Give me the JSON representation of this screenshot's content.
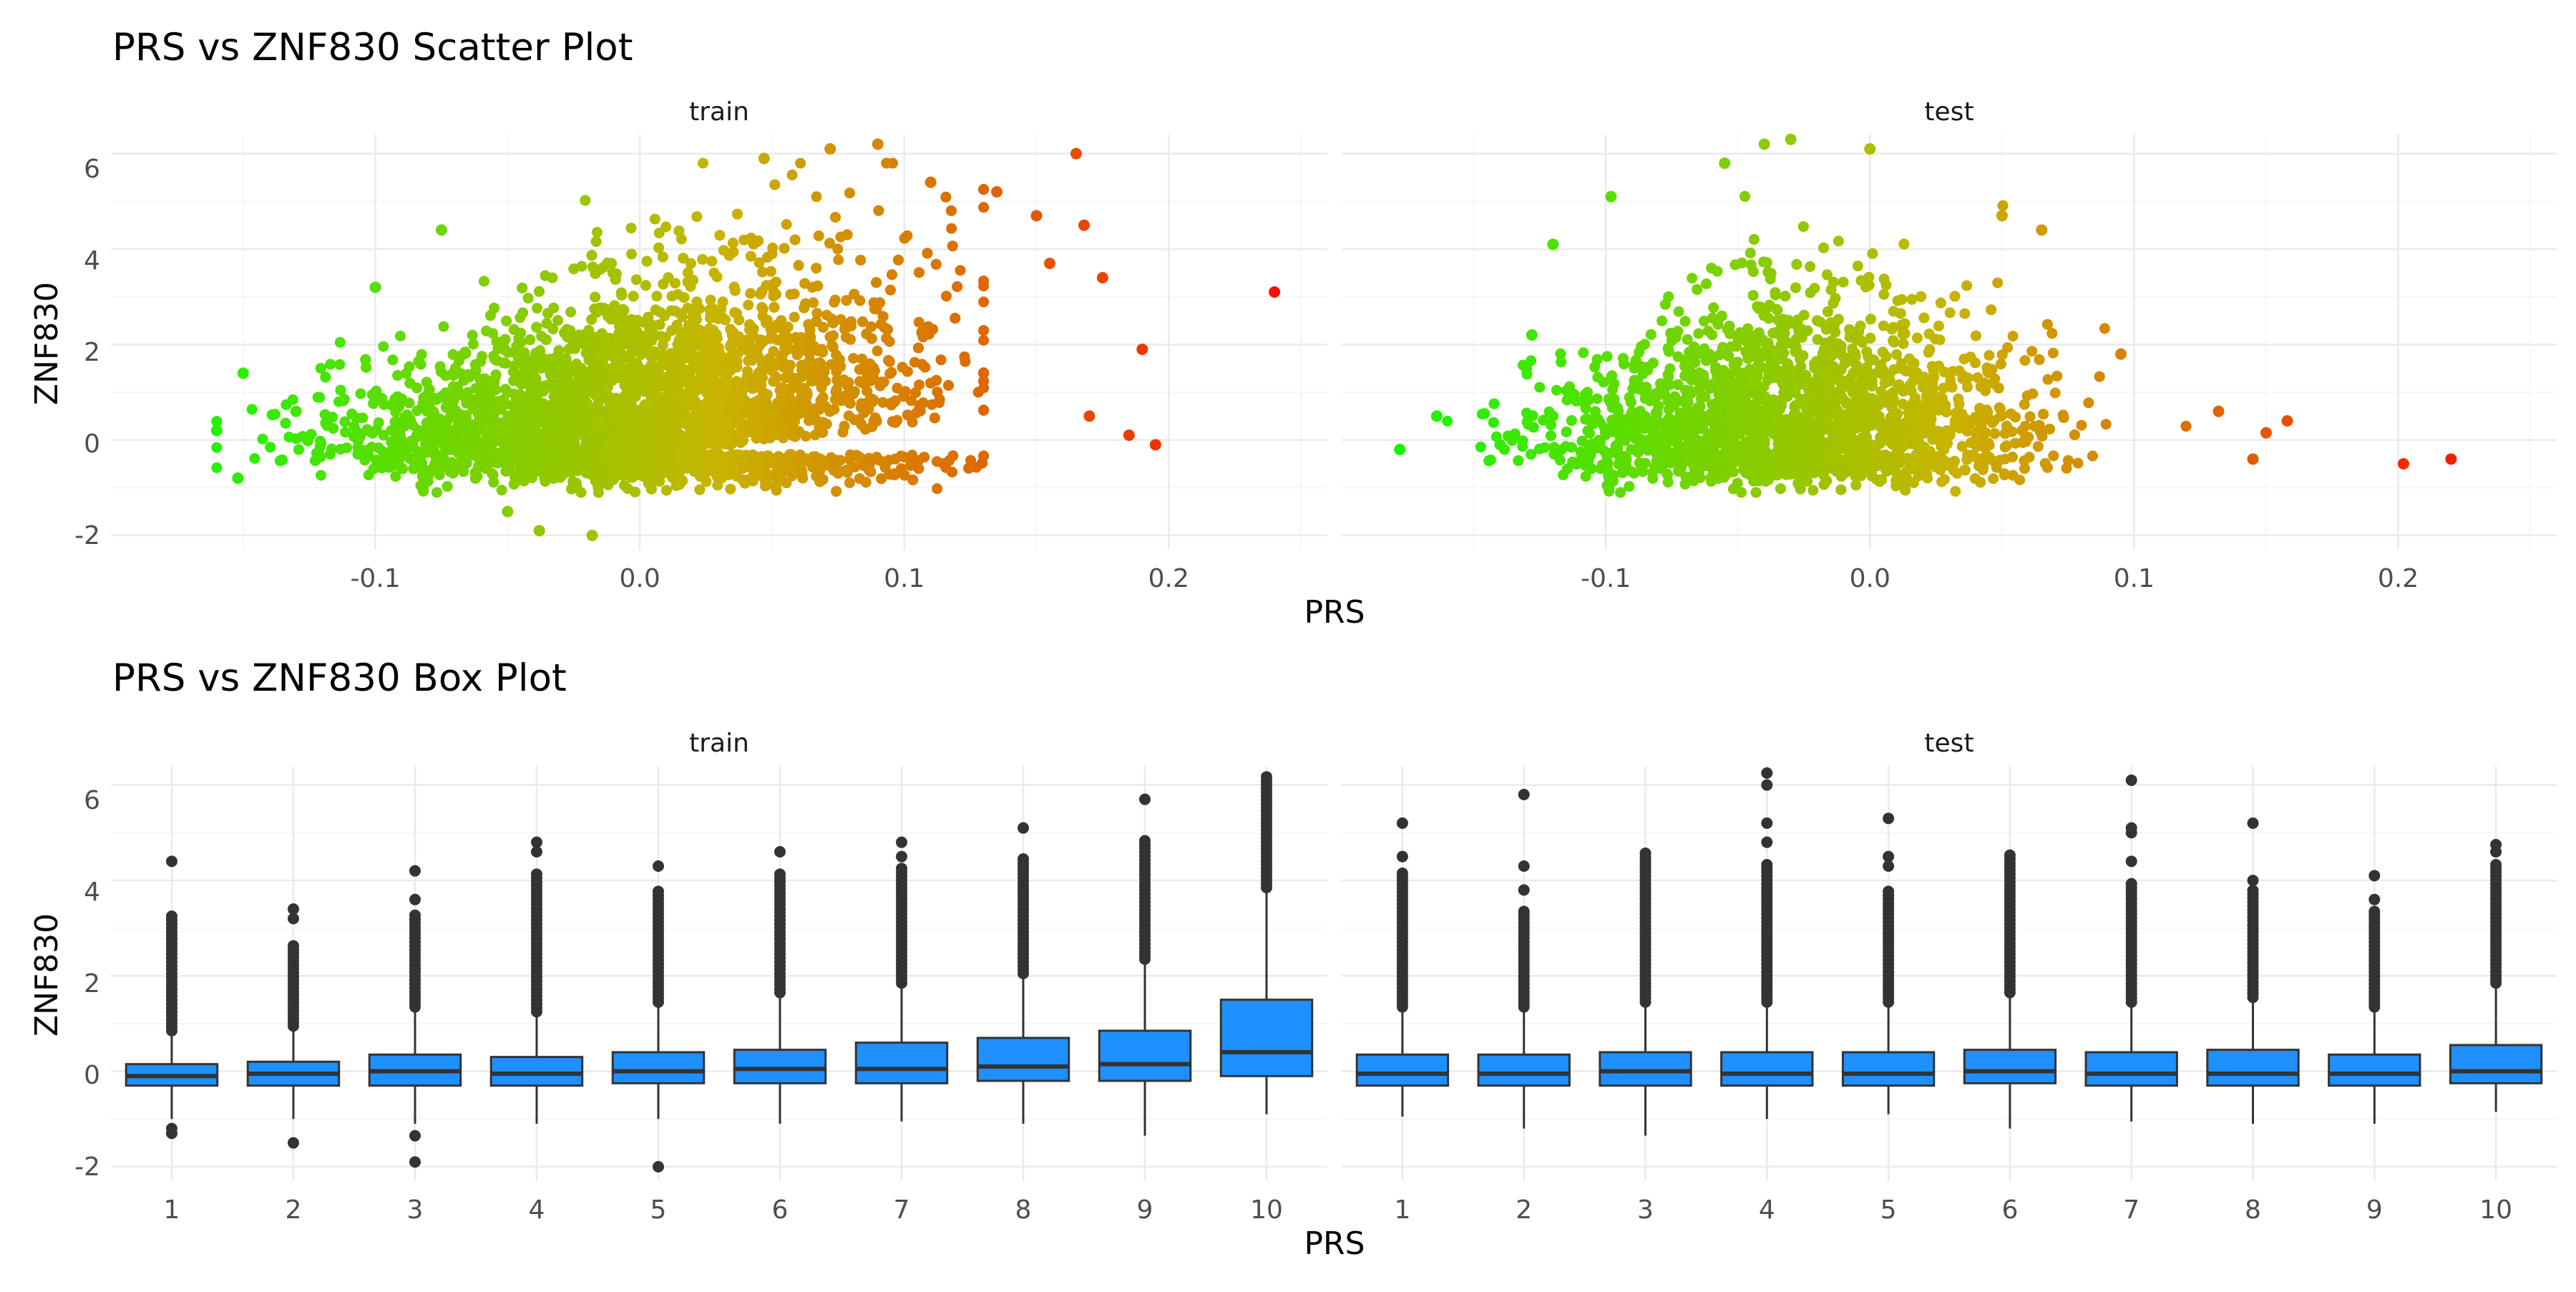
{
  "scatter": {
    "title": "PRS vs ZNF830 Scatter Plot",
    "xlabel": "PRS",
    "ylabel": "ZNF830"
  },
  "box": {
    "title": "PRS vs ZNF830 Box Plot",
    "xlabel": "PRS",
    "ylabel": "ZNF830"
  },
  "colors": {
    "box_fill": "#1e90ff",
    "box_line": "#333333",
    "outlier": "#333333",
    "gradient_low": "#00ff00",
    "gradient_mid": "#c8b400",
    "gradient_high": "#ff0000"
  },
  "chart_data": [
    {
      "type": "scatter",
      "title": "PRS vs ZNF830 Scatter Plot",
      "xlabel": "PRS",
      "ylabel": "ZNF830",
      "facets": [
        "train",
        "test"
      ],
      "color_by": "PRS",
      "grid": true,
      "xlim": [
        -0.2,
        0.26
      ],
      "ylim": [
        -2.3,
        6.4
      ],
      "x_ticks": [
        -0.1,
        0.0,
        0.1,
        0.2
      ],
      "x_tick_labels": [
        "-0.1",
        "0.0",
        "0.1",
        "0.2"
      ],
      "y_ticks": [
        -2,
        0,
        2,
        4,
        6
      ],
      "y_tick_labels": [
        "-2",
        "0",
        "2",
        "4",
        "6"
      ],
      "outliers": {
        "train": [
          {
            "x": 0.24,
            "y": 3.1
          },
          {
            "x": 0.195,
            "y": -0.1
          },
          {
            "x": 0.19,
            "y": 1.9
          },
          {
            "x": 0.175,
            "y": 3.4
          },
          {
            "x": 0.165,
            "y": 6.0
          },
          {
            "x": 0.168,
            "y": 4.5
          },
          {
            "x": 0.155,
            "y": 3.7
          },
          {
            "x": 0.15,
            "y": 4.7
          },
          {
            "x": 0.135,
            "y": 5.2
          },
          {
            "x": 0.185,
            "y": 0.1
          },
          {
            "x": 0.17,
            "y": 0.5
          },
          {
            "x": -0.16,
            "y": 0.2
          },
          {
            "x": -0.152,
            "y": -0.8
          },
          {
            "x": -0.15,
            "y": 1.4
          },
          {
            "x": -0.13,
            "y": 0.6
          },
          {
            "x": -0.1,
            "y": 3.2
          },
          {
            "x": -0.075,
            "y": 4.4
          },
          {
            "x": -0.05,
            "y": -1.5
          },
          {
            "x": -0.038,
            "y": -1.9
          },
          {
            "x": -0.018,
            "y": -2.0
          },
          {
            "x": 0.09,
            "y": 6.2
          },
          {
            "x": 0.072,
            "y": 6.1
          },
          {
            "x": 0.047,
            "y": 5.9
          },
          {
            "x": 0.11,
            "y": 5.4
          }
        ],
        "test": [
          {
            "x": 0.22,
            "y": -0.4
          },
          {
            "x": 0.202,
            "y": -0.5
          },
          {
            "x": 0.158,
            "y": 0.4
          },
          {
            "x": 0.15,
            "y": 0.15
          },
          {
            "x": 0.132,
            "y": 0.6
          },
          {
            "x": 0.145,
            "y": -0.4
          },
          {
            "x": -0.178,
            "y": -0.2
          },
          {
            "x": -0.164,
            "y": 0.5
          },
          {
            "x": -0.14,
            "y": -0.1
          },
          {
            "x": -0.13,
            "y": 1.5
          },
          {
            "x": -0.128,
            "y": 2.2
          },
          {
            "x": -0.12,
            "y": 4.1
          },
          {
            "x": -0.098,
            "y": 5.1
          },
          {
            "x": -0.055,
            "y": 5.8
          },
          {
            "x": -0.04,
            "y": 6.2
          },
          {
            "x": -0.03,
            "y": 6.3
          },
          {
            "x": 0.0,
            "y": 6.1
          },
          {
            "x": 0.05,
            "y": 4.7
          },
          {
            "x": 0.065,
            "y": 4.4
          },
          {
            "x": 0.095,
            "y": 1.8
          }
        ]
      }
    },
    {
      "type": "box",
      "title": "PRS vs ZNF830 Box Plot",
      "xlabel": "PRS",
      "ylabel": "ZNF830",
      "categories": [
        "1",
        "2",
        "3",
        "4",
        "5",
        "6",
        "7",
        "8",
        "9",
        "10"
      ],
      "ylim": [
        -2.3,
        6.4
      ],
      "y_ticks": [
        -2,
        0,
        2,
        4,
        6
      ],
      "y_tick_labels": [
        "-2",
        "0",
        "2",
        "4",
        "6"
      ],
      "grid": true,
      "facets": [
        {
          "name": "train",
          "boxes": [
            {
              "q1": -0.3,
              "median": -0.1,
              "q3": 0.15,
              "whisker_low": -1.0,
              "whisker_high": 0.8,
              "outlier_range": [
                0.8,
                3.3
              ],
              "outliers": [
                4.4,
                -1.2,
                -1.3
              ]
            },
            {
              "q1": -0.3,
              "median": -0.05,
              "q3": 0.2,
              "whisker_low": -1.0,
              "whisker_high": 0.9,
              "outlier_range": [
                0.9,
                2.7
              ],
              "outliers": [
                3.4,
                3.2,
                -1.5
              ]
            },
            {
              "q1": -0.3,
              "median": 0.0,
              "q3": 0.35,
              "whisker_low": -1.1,
              "whisker_high": 1.3,
              "outlier_range": [
                1.3,
                3.3
              ],
              "outliers": [
                4.2,
                3.6,
                -1.35,
                -1.9
              ]
            },
            {
              "q1": -0.3,
              "median": -0.05,
              "q3": 0.3,
              "whisker_low": -1.1,
              "whisker_high": 1.2,
              "outlier_range": [
                1.2,
                4.2
              ],
              "outliers": [
                4.6,
                4.8
              ]
            },
            {
              "q1": -0.25,
              "median": 0.0,
              "q3": 0.4,
              "whisker_low": -1.0,
              "whisker_high": 1.4,
              "outlier_range": [
                1.4,
                3.8
              ],
              "outliers": [
                4.3,
                -2.0
              ]
            },
            {
              "q1": -0.25,
              "median": 0.05,
              "q3": 0.45,
              "whisker_low": -1.1,
              "whisker_high": 1.6,
              "outlier_range": [
                1.6,
                4.2
              ],
              "outliers": [
                4.6
              ]
            },
            {
              "q1": -0.25,
              "median": 0.05,
              "q3": 0.6,
              "whisker_low": -1.05,
              "whisker_high": 1.8,
              "outlier_range": [
                1.8,
                4.3
              ],
              "outliers": [
                4.5,
                4.8
              ]
            },
            {
              "q1": -0.2,
              "median": 0.1,
              "q3": 0.7,
              "whisker_low": -1.1,
              "whisker_high": 2.0,
              "outlier_range": [
                2.0,
                4.5
              ],
              "outliers": [
                5.1
              ]
            },
            {
              "q1": -0.2,
              "median": 0.15,
              "q3": 0.85,
              "whisker_low": -1.35,
              "whisker_high": 2.3,
              "outlier_range": [
                2.3,
                4.9
              ],
              "outliers": [
                5.7
              ]
            },
            {
              "q1": -0.1,
              "median": 0.4,
              "q3": 1.5,
              "whisker_low": -0.9,
              "whisker_high": 3.8,
              "outlier_range": [
                3.8,
                6.25
              ],
              "outliers": []
            }
          ]
        },
        {
          "name": "test",
          "boxes": [
            {
              "q1": -0.3,
              "median": -0.05,
              "q3": 0.35,
              "whisker_low": -0.95,
              "whisker_high": 1.3,
              "outlier_range": [
                1.3,
                4.2
              ],
              "outliers": [
                4.5,
                5.2
              ]
            },
            {
              "q1": -0.3,
              "median": -0.05,
              "q3": 0.35,
              "whisker_low": -1.2,
              "whisker_high": 1.3,
              "outlier_range": [
                1.3,
                3.4
              ],
              "outliers": [
                3.8,
                4.3,
                5.8
              ]
            },
            {
              "q1": -0.3,
              "median": 0.0,
              "q3": 0.4,
              "whisker_low": -1.35,
              "whisker_high": 1.4,
              "outlier_range": [
                1.4,
                4.6
              ],
              "outliers": []
            },
            {
              "q1": -0.3,
              "median": -0.05,
              "q3": 0.4,
              "whisker_low": -1.0,
              "whisker_high": 1.4,
              "outlier_range": [
                1.4,
                4.4
              ],
              "outliers": [
                4.8,
                5.2,
                6.0,
                6.25
              ]
            },
            {
              "q1": -0.3,
              "median": -0.05,
              "q3": 0.4,
              "whisker_low": -0.9,
              "whisker_high": 1.4,
              "outlier_range": [
                1.4,
                3.8
              ],
              "outliers": [
                4.3,
                4.5,
                5.3
              ]
            },
            {
              "q1": -0.25,
              "median": 0.0,
              "q3": 0.45,
              "whisker_low": -1.2,
              "whisker_high": 1.6,
              "outlier_range": [
                1.6,
                4.6
              ],
              "outliers": []
            },
            {
              "q1": -0.3,
              "median": -0.05,
              "q3": 0.4,
              "whisker_low": -1.05,
              "whisker_high": 1.4,
              "outlier_range": [
                1.4,
                4.0
              ],
              "outliers": [
                4.4,
                5.0,
                5.1,
                6.1
              ]
            },
            {
              "q1": -0.3,
              "median": -0.05,
              "q3": 0.45,
              "whisker_low": -1.1,
              "whisker_high": 1.5,
              "outlier_range": [
                1.5,
                3.8
              ],
              "outliers": [
                4.0,
                5.2
              ]
            },
            {
              "q1": -0.3,
              "median": -0.05,
              "q3": 0.35,
              "whisker_low": -1.1,
              "whisker_high": 1.3,
              "outlier_range": [
                1.3,
                3.4
              ],
              "outliers": [
                3.6,
                4.1
              ]
            },
            {
              "q1": -0.25,
              "median": 0.0,
              "q3": 0.55,
              "whisker_low": -0.85,
              "whisker_high": 1.8,
              "outlier_range": [
                1.8,
                4.4
              ],
              "outliers": [
                4.6,
                4.75
              ]
            }
          ]
        }
      ]
    }
  ]
}
